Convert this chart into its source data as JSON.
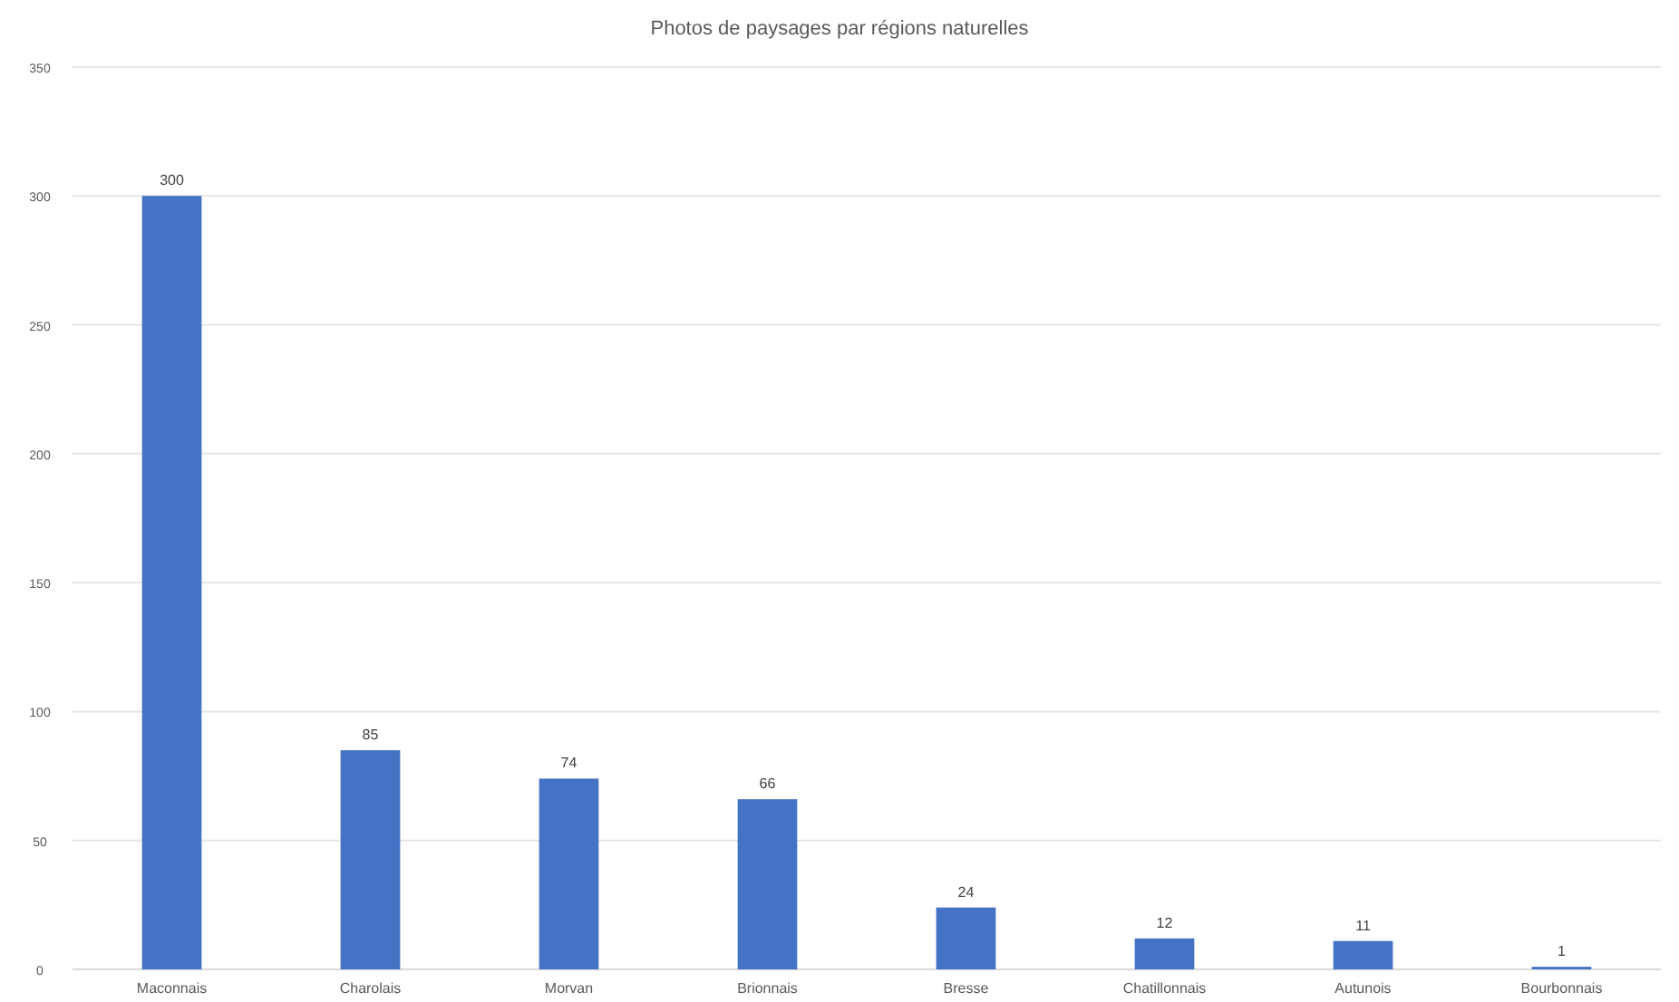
{
  "chart_data": {
    "type": "bar",
    "title": "Photos de paysages par régions naturelles",
    "categories": [
      "Maconnais",
      "Charolais",
      "Morvan",
      "Brionnais",
      "Bresse",
      "Chatillonnais",
      "Autunois",
      "Bourbonnais"
    ],
    "values": [
      300,
      85,
      74,
      66,
      24,
      12,
      11,
      1
    ],
    "color": "#4472c4",
    "ylim": [
      0,
      350
    ],
    "yticks": [
      0,
      50,
      100,
      150,
      200,
      250,
      300,
      350
    ],
    "grid": "y",
    "data_labels": true
  }
}
